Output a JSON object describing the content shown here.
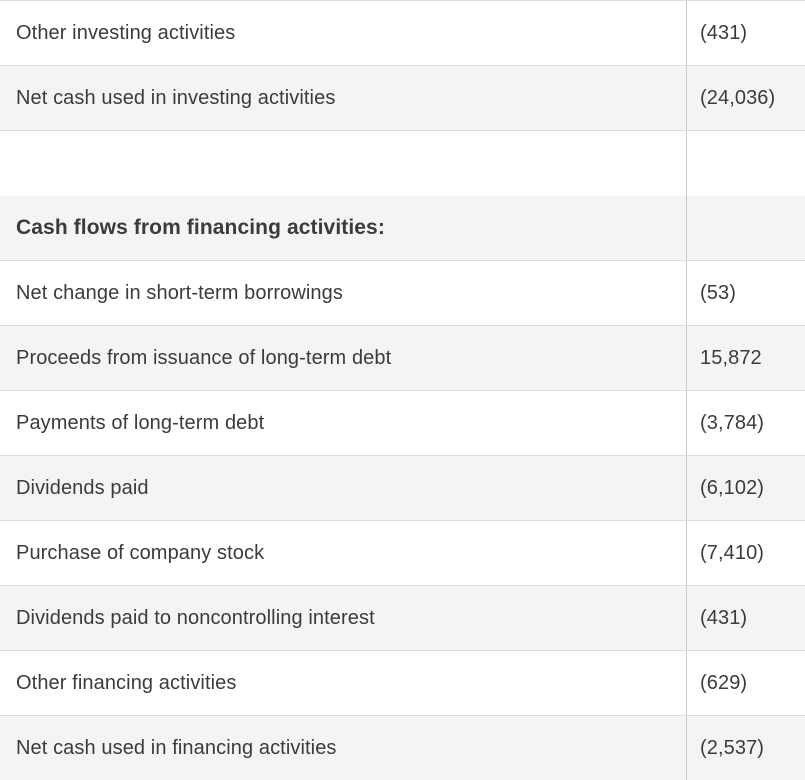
{
  "table": {
    "name": "cash-flow-statement-section",
    "columns": [
      "line_item",
      "amount"
    ],
    "rows": [
      {
        "label": "Other investing activities",
        "value": "(431)",
        "bold": false,
        "blank": false
      },
      {
        "label": "Net cash used in investing activities",
        "value": "(24,036)",
        "bold": false,
        "blank": false
      },
      {
        "label": "",
        "value": "",
        "bold": false,
        "blank": true
      },
      {
        "label": "Cash flows from financing activities:",
        "value": "",
        "bold": true,
        "blank": false
      },
      {
        "label": "Net change in short-term borrowings",
        "value": "(53)",
        "bold": false,
        "blank": false
      },
      {
        "label": "Proceeds from issuance of long-term debt",
        "value": "15,872",
        "bold": false,
        "blank": false
      },
      {
        "label": "Payments of long-term debt",
        "value": "(3,784)",
        "bold": false,
        "blank": false
      },
      {
        "label": "Dividends paid",
        "value": "(6,102)",
        "bold": false,
        "blank": false
      },
      {
        "label": "Purchase of company stock",
        "value": "(7,410)",
        "bold": false,
        "blank": false
      },
      {
        "label": "Dividends paid to noncontrolling interest",
        "value": "(431)",
        "bold": false,
        "blank": false
      },
      {
        "label": "Other financing activities",
        "value": "(629)",
        "bold": false,
        "blank": false
      },
      {
        "label": "Net cash used in financing activities",
        "value": "(2,537)",
        "bold": false,
        "blank": false
      }
    ],
    "colors": {
      "row_bg": "#ffffff",
      "row_alt_bg": "#f4f4f5",
      "border": "#dcdcdc",
      "divider": "#c9c9c9",
      "text": "#3b3b3b"
    }
  }
}
